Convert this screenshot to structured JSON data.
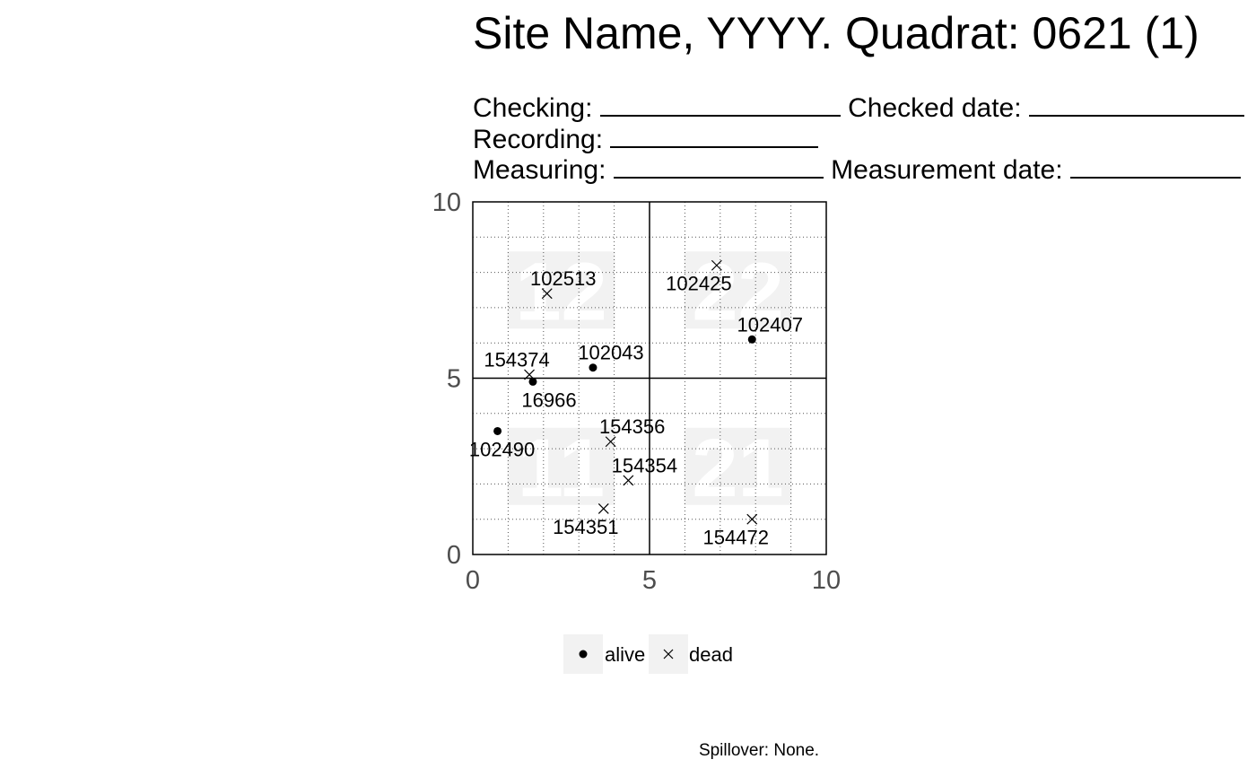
{
  "header": {
    "title": "Site Name, YYYY. Quadrat: 0621 (1)",
    "checking_label": "Checking:",
    "checked_date_label": "Checked date:",
    "recording_label": "Recording:",
    "measuring_label": "Measuring:",
    "measurement_date_label": "Measurement date:"
  },
  "chart_data": {
    "type": "scatter",
    "xlim": [
      0,
      10
    ],
    "ylim": [
      0,
      10
    ],
    "x_ticks": [
      "0",
      "5",
      "10"
    ],
    "y_ticks": [
      "0",
      "5",
      "10"
    ],
    "minor_grid": true,
    "major_lines_at": [
      5
    ],
    "subquadrat_labels": [
      {
        "label": "12",
        "x": 2.5,
        "y": 7.5
      },
      {
        "label": "22",
        "x": 7.5,
        "y": 7.5
      },
      {
        "label": "11",
        "x": 2.5,
        "y": 2.5
      },
      {
        "label": "21",
        "x": 7.5,
        "y": 2.5
      }
    ],
    "points": [
      {
        "tag": "102513",
        "x": 2.1,
        "y": 7.4,
        "status": "dead"
      },
      {
        "tag": "102425",
        "x": 6.9,
        "y": 8.2,
        "status": "dead"
      },
      {
        "tag": "102407",
        "x": 7.9,
        "y": 6.1,
        "status": "alive"
      },
      {
        "tag": "154374",
        "x": 1.6,
        "y": 5.1,
        "status": "dead"
      },
      {
        "tag": "102043",
        "x": 3.4,
        "y": 5.3,
        "status": "alive"
      },
      {
        "tag": "16966",
        "x": 1.7,
        "y": 4.9,
        "status": "alive"
      },
      {
        "tag": "102490",
        "x": 0.7,
        "y": 3.5,
        "status": "alive"
      },
      {
        "tag": "154356",
        "x": 3.9,
        "y": 3.2,
        "status": "dead"
      },
      {
        "tag": "154354",
        "x": 4.4,
        "y": 2.1,
        "status": "dead"
      },
      {
        "tag": "154351",
        "x": 3.7,
        "y": 1.3,
        "status": "dead"
      },
      {
        "tag": "154472",
        "x": 7.9,
        "y": 1.0,
        "status": "dead"
      }
    ]
  },
  "legend": {
    "alive_label": "alive",
    "dead_label": "dead"
  },
  "footer": {
    "spillover": "Spillover: None."
  }
}
